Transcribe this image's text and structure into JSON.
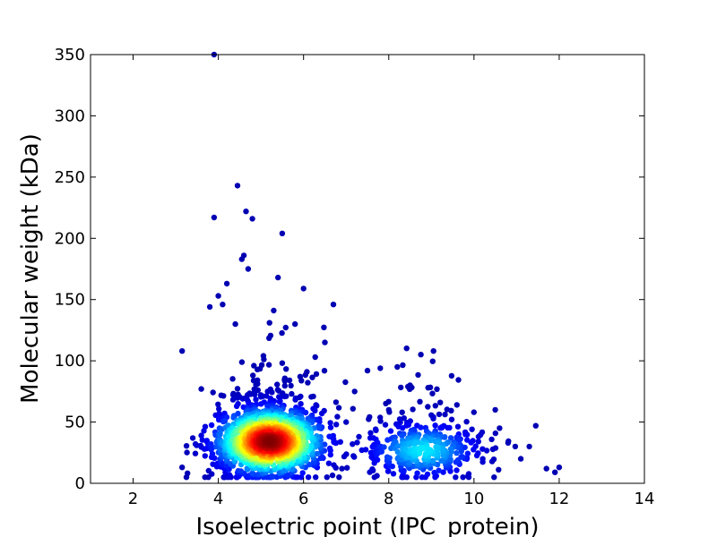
{
  "chart_data": {
    "type": "scatter",
    "title": "",
    "xlabel": "Isoelectric point (IPC_protein)",
    "ylabel": "Molecular weight (kDa)",
    "xlim": [
      1,
      14
    ],
    "ylim": [
      0,
      350
    ],
    "xticks": [
      2,
      4,
      6,
      8,
      10,
      12,
      14
    ],
    "yticks": [
      0,
      50,
      100,
      150,
      200,
      250,
      300,
      350
    ],
    "grid": false,
    "legend": "none",
    "colormap": "jet (point density)",
    "colors": {
      "low_density": "#00008f",
      "mid_density": "#00ffff",
      "high_density": "#ffff00",
      "peak_density": "#800000"
    },
    "clusters": [
      {
        "x_center": 5.2,
        "y_center": 34,
        "x_spread": 0.65,
        "y_spread": 14,
        "count": 1500
      },
      {
        "x_center": 8.8,
        "y_center": 27,
        "x_spread": 0.7,
        "y_spread": 12,
        "count": 400
      }
    ],
    "outliers": [
      [
        3.9,
        350
      ],
      [
        4.45,
        243
      ],
      [
        3.9,
        217
      ],
      [
        4.65,
        222
      ],
      [
        4.8,
        216
      ],
      [
        5.5,
        204
      ],
      [
        4.55,
        183
      ],
      [
        4.6,
        186
      ],
      [
        4.7,
        175
      ],
      [
        5.4,
        168
      ],
      [
        4.2,
        163
      ],
      [
        4.0,
        153
      ],
      [
        6.0,
        159
      ],
      [
        3.8,
        144
      ],
      [
        4.1,
        146
      ],
      [
        6.7,
        146
      ],
      [
        3.15,
        108
      ],
      [
        9.05,
        108
      ],
      [
        3.6,
        77
      ],
      [
        3.4,
        37
      ],
      [
        3.15,
        13
      ],
      [
        3.25,
        5
      ],
      [
        12.0,
        13
      ],
      [
        11.45,
        47
      ],
      [
        10.5,
        60
      ],
      [
        10.0,
        58
      ],
      [
        5.3,
        141
      ],
      [
        5.2,
        131
      ],
      [
        4.4,
        130
      ],
      [
        5.8,
        130
      ],
      [
        6.5,
        115
      ],
      [
        7.5,
        92
      ],
      [
        7.8,
        94
      ],
      [
        8.2,
        95
      ],
      [
        8.5,
        80
      ],
      [
        11.1,
        20
      ],
      [
        11.7,
        12
      ],
      [
        11.9,
        9
      ],
      [
        10.8,
        33
      ],
      [
        10.2,
        28
      ],
      [
        7.0,
        50
      ],
      [
        7.3,
        38
      ],
      [
        6.9,
        12
      ],
      [
        7.6,
        25
      ],
      [
        9.6,
        64
      ],
      [
        9.8,
        40
      ],
      [
        10.6,
        45
      ],
      [
        11.3,
        30
      ],
      [
        8.0,
        60
      ],
      [
        7.2,
        75
      ]
    ]
  }
}
